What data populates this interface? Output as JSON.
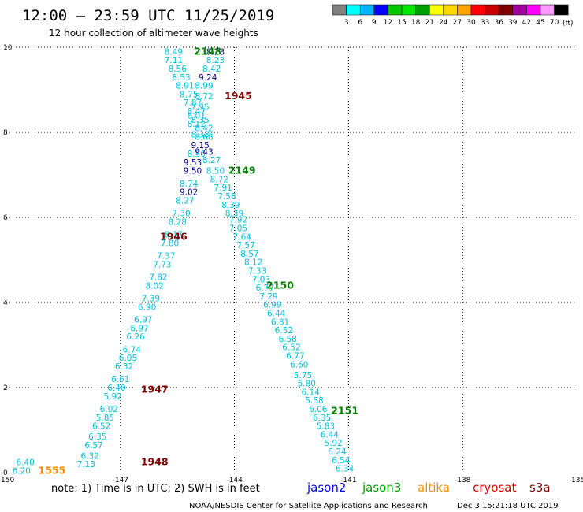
{
  "header": {
    "title": "12:00 — 23:59 UTC 11/25/2019",
    "subtitle": "12 hour collection of altimeter wave heights",
    "unit": "(ft)"
  },
  "scale": {
    "values": [
      "3",
      "6",
      "9",
      "12",
      "15",
      "18",
      "21",
      "24",
      "27",
      "30",
      "33",
      "36",
      "39",
      "42",
      "45",
      "70"
    ],
    "colors": [
      "#808080",
      "#00ffff",
      "#00b4ff",
      "#0000ff",
      "#00c800",
      "#00e600",
      "#00a000",
      "#ffff00",
      "#ffd700",
      "#ffa500",
      "#ff0000",
      "#c80000",
      "#800000",
      "#a000a0",
      "#ff00ff",
      "#ff99ff",
      "#000000"
    ]
  },
  "footer": {
    "note": "note: 1) Time is in UTC; 2) SWH is in feet",
    "credit": "NOAA/NESDIS Center for Satellite Applications and Research",
    "timestamp": "Dec  3 15:21:18 UTC 2019",
    "satellites": [
      {
        "name": "jason2",
        "color": "#0000ff"
      },
      {
        "name": "jason3",
        "color": "#00a000"
      },
      {
        "name": "altika",
        "color": "#ff8c00"
      },
      {
        "name": "cryosat",
        "color": "#e00000"
      },
      {
        "name": "s3a",
        "color": "#800000"
      }
    ]
  },
  "chart_data": {
    "type": "scatter",
    "xlim": [
      -150,
      -135
    ],
    "ylim": [
      0,
      10
    ],
    "x_ticks": [
      -150,
      -147,
      -144,
      -141,
      -138,
      -135
    ],
    "y_ticks": [
      0,
      2,
      4,
      6,
      8,
      10
    ],
    "grid": true,
    "colors": {
      "light": "#00c0e0",
      "dark": "#000090",
      "time_green": "#008000",
      "time_red": "#800000",
      "time_orange": "#ff8c00"
    },
    "time_labels": [
      {
        "text": "2148",
        "x": -144.7,
        "y": 9.9,
        "color": "#008000"
      },
      {
        "text": "1945",
        "x": -143.9,
        "y": 8.85,
        "color": "#800000"
      },
      {
        "text": "2149",
        "x": -143.8,
        "y": 7.1,
        "color": "#008000"
      },
      {
        "text": "1946",
        "x": -145.6,
        "y": 5.55,
        "color": "#800000"
      },
      {
        "text": "2150",
        "x": -142.8,
        "y": 4.4,
        "color": "#008000"
      },
      {
        "text": "1947",
        "x": -146.1,
        "y": 1.95,
        "color": "#800000"
      },
      {
        "text": "2151",
        "x": -141.1,
        "y": 1.45,
        "color": "#008000"
      },
      {
        "text": "1948",
        "x": -146.1,
        "y": 0.25,
        "color": "#800000"
      },
      {
        "text": "1555",
        "x": -148.8,
        "y": 0.05,
        "color": "#ff8c00"
      }
    ],
    "series": [
      {
        "name": "1945",
        "color": "#00c0e0",
        "points": [
          {
            "x": -145.6,
            "y": 9.9,
            "v": "8.49"
          },
          {
            "x": -145.6,
            "y": 9.7,
            "v": "7.11"
          },
          {
            "x": -145.5,
            "y": 9.5,
            "v": "8.56"
          },
          {
            "x": -145.4,
            "y": 9.3,
            "v": "8.53"
          },
          {
            "x": -145.3,
            "y": 9.1,
            "v": "8.91"
          },
          {
            "x": -145.2,
            "y": 8.9,
            "v": "8.75"
          },
          {
            "x": -145.1,
            "y": 8.7,
            "v": "7.87"
          },
          {
            "x": -145.0,
            "y": 8.5,
            "v": "8.47"
          },
          {
            "x": -144.9,
            "y": 8.3,
            "v": "8.35"
          },
          {
            "x": -144.8,
            "y": 8.1,
            "v": "8.42"
          },
          {
            "x": -144.8,
            "y": 7.9,
            "v": "8.68"
          },
          {
            "x": -144.9,
            "y": 7.7,
            "v": "9.15",
            "d": true
          },
          {
            "x": -145.0,
            "y": 7.5,
            "v": "8.50"
          },
          {
            "x": -145.1,
            "y": 7.3,
            "v": "9.53",
            "d": true
          },
          {
            "x": -145.1,
            "y": 7.1,
            "v": "9.50",
            "d": true
          },
          {
            "x": -145.2,
            "y": 6.8,
            "v": "8.74"
          },
          {
            "x": -145.2,
            "y": 6.6,
            "v": "9.02",
            "d": true
          },
          {
            "x": -145.3,
            "y": 6.4,
            "v": "8.27"
          },
          {
            "x": -145.4,
            "y": 6.1,
            "v": "7.30"
          },
          {
            "x": -145.5,
            "y": 5.9,
            "v": "8.28"
          },
          {
            "x": -145.6,
            "y": 5.6,
            "v": "8.17"
          },
          {
            "x": -145.7,
            "y": 5.4,
            "v": "7.80"
          },
          {
            "x": -145.8,
            "y": 5.1,
            "v": "7.37"
          },
          {
            "x": -145.9,
            "y": 4.9,
            "v": "7.73"
          },
          {
            "x": -146.0,
            "y": 4.6,
            "v": "7.82"
          },
          {
            "x": -146.1,
            "y": 4.4,
            "v": "8.02"
          },
          {
            "x": -146.2,
            "y": 4.1,
            "v": "7.39"
          },
          {
            "x": -146.3,
            "y": 3.9,
            "v": "6.90"
          },
          {
            "x": -146.4,
            "y": 3.6,
            "v": "6.97"
          },
          {
            "x": -146.5,
            "y": 3.4,
            "v": "6.97"
          },
          {
            "x": -146.6,
            "y": 3.2,
            "v": "6.26"
          },
          {
            "x": -146.7,
            "y": 2.9,
            "v": "6.74"
          },
          {
            "x": -146.8,
            "y": 2.7,
            "v": "6.05"
          },
          {
            "x": -146.9,
            "y": 2.5,
            "v": "6.32"
          },
          {
            "x": -147.0,
            "y": 2.2,
            "v": "6.61"
          },
          {
            "x": -147.1,
            "y": 2.0,
            "v": "6.40"
          },
          {
            "x": -147.2,
            "y": 1.8,
            "v": "5.92"
          },
          {
            "x": -147.3,
            "y": 1.5,
            "v": "6.02"
          },
          {
            "x": -147.4,
            "y": 1.3,
            "v": "5.85"
          },
          {
            "x": -147.5,
            "y": 1.1,
            "v": "6.52"
          },
          {
            "x": -147.6,
            "y": 0.85,
            "v": "6.35"
          },
          {
            "x": -147.7,
            "y": 0.65,
            "v": "6.57"
          },
          {
            "x": -147.8,
            "y": 0.4,
            "v": "6.32"
          },
          {
            "x": -147.9,
            "y": 0.2,
            "v": "7.13"
          }
        ]
      },
      {
        "name": "2148",
        "color": "#00c0e0",
        "points": [
          {
            "x": -144.5,
            "y": 9.9,
            "v": "8.23",
            "d": true
          },
          {
            "x": -144.5,
            "y": 9.7,
            "v": "8.23"
          },
          {
            "x": -144.6,
            "y": 9.5,
            "v": "8.42"
          },
          {
            "x": -144.7,
            "y": 9.3,
            "v": "9.24",
            "d": true
          },
          {
            "x": -144.8,
            "y": 9.1,
            "v": "8.99"
          },
          {
            "x": -144.8,
            "y": 8.85,
            "v": "8.72"
          },
          {
            "x": -144.9,
            "y": 8.6,
            "v": "7.95"
          },
          {
            "x": -145.0,
            "y": 8.4,
            "v": "8.01"
          },
          {
            "x": -145.0,
            "y": 8.2,
            "v": "8.12"
          },
          {
            "x": -144.9,
            "y": 7.95,
            "v": "8.33"
          },
          {
            "x": -144.8,
            "y": 7.55,
            "v": "9.43",
            "d": true
          },
          {
            "x": -144.6,
            "y": 7.35,
            "v": "8.27"
          },
          {
            "x": -144.5,
            "y": 7.1,
            "v": "8.50"
          },
          {
            "x": -144.4,
            "y": 6.9,
            "v": "8.72"
          },
          {
            "x": -144.3,
            "y": 6.7,
            "v": "7.91"
          },
          {
            "x": -144.2,
            "y": 6.5,
            "v": "7.58"
          },
          {
            "x": -144.1,
            "y": 6.3,
            "v": "8.39"
          },
          {
            "x": -144.0,
            "y": 6.1,
            "v": "8.39"
          },
          {
            "x": -143.9,
            "y": 5.95,
            "v": "7.92"
          },
          {
            "x": -143.9,
            "y": 5.75,
            "v": "7.05"
          },
          {
            "x": -143.8,
            "y": 5.55,
            "v": "7.64"
          },
          {
            "x": -143.7,
            "y": 5.35,
            "v": "7.57"
          },
          {
            "x": -143.6,
            "y": 5.15,
            "v": "8.57"
          },
          {
            "x": -143.5,
            "y": 4.95,
            "v": "8.12"
          },
          {
            "x": -143.4,
            "y": 4.75,
            "v": "7.33"
          },
          {
            "x": -143.3,
            "y": 4.55,
            "v": "7.03"
          },
          {
            "x": -143.2,
            "y": 4.35,
            "v": "6.77"
          },
          {
            "x": -143.1,
            "y": 4.15,
            "v": "7.29"
          },
          {
            "x": -143.0,
            "y": 3.95,
            "v": "6.99"
          },
          {
            "x": -142.9,
            "y": 3.75,
            "v": "6.44"
          },
          {
            "x": -142.8,
            "y": 3.55,
            "v": "6.81"
          },
          {
            "x": -142.7,
            "y": 3.35,
            "v": "6.52"
          },
          {
            "x": -142.6,
            "y": 3.15,
            "v": "6.58"
          },
          {
            "x": -142.5,
            "y": 2.95,
            "v": "6.52"
          },
          {
            "x": -142.4,
            "y": 2.75,
            "v": "6.77"
          },
          {
            "x": -142.3,
            "y": 2.55,
            "v": "6.60"
          },
          {
            "x": -142.2,
            "y": 2.3,
            "v": "5.75"
          },
          {
            "x": -142.1,
            "y": 2.1,
            "v": "5.80"
          },
          {
            "x": -142.0,
            "y": 1.9,
            "v": "6.14"
          },
          {
            "x": -141.9,
            "y": 1.7,
            "v": "5.58"
          },
          {
            "x": -141.8,
            "y": 1.5,
            "v": "6.06"
          },
          {
            "x": -141.7,
            "y": 1.3,
            "v": "6.35"
          },
          {
            "x": -141.6,
            "y": 1.1,
            "v": "5.83"
          },
          {
            "x": -141.5,
            "y": 0.9,
            "v": "6.44"
          },
          {
            "x": -141.4,
            "y": 0.7,
            "v": "5.92"
          },
          {
            "x": -141.3,
            "y": 0.5,
            "v": "6.24"
          },
          {
            "x": -141.2,
            "y": 0.3,
            "v": "6.54"
          },
          {
            "x": -141.1,
            "y": 0.1,
            "v": "6.34"
          }
        ]
      },
      {
        "name": "1555",
        "color": "#00c0e0",
        "points": [
          {
            "x": -149.5,
            "y": 0.25,
            "v": "6.40"
          },
          {
            "x": -149.6,
            "y": 0.05,
            "v": "6.20"
          }
        ]
      }
    ]
  }
}
